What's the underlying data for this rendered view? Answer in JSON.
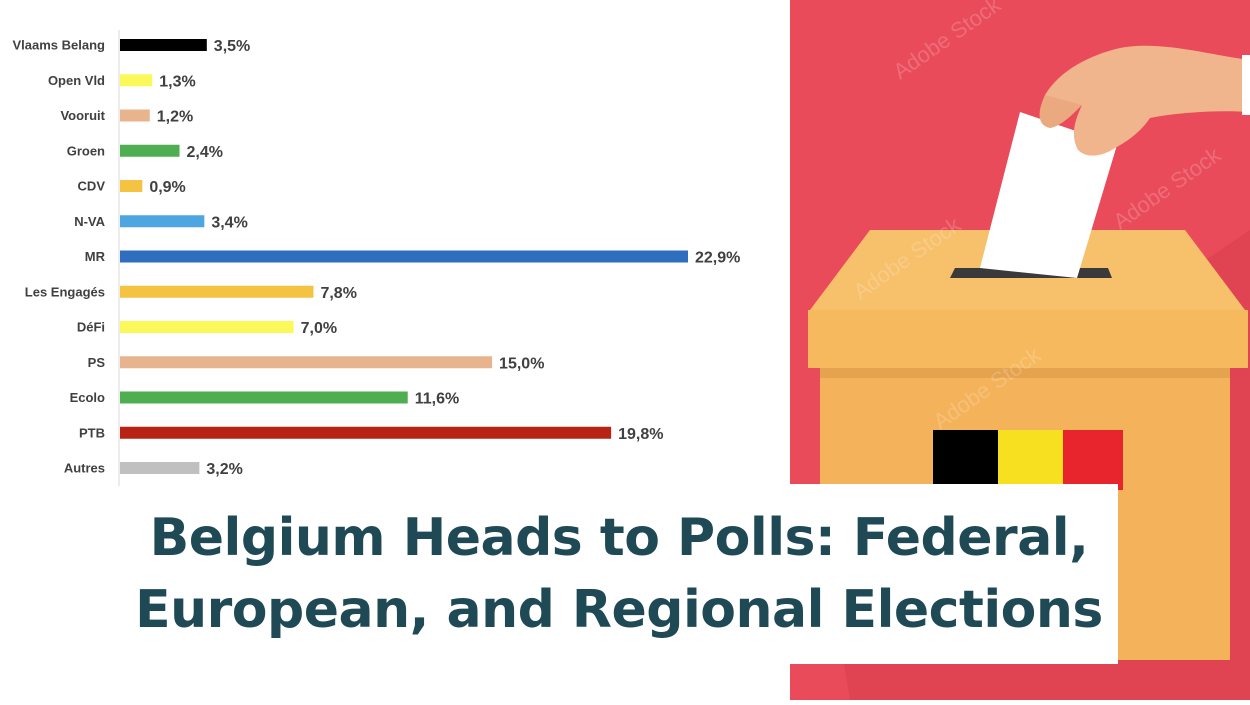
{
  "chart_data": {
    "type": "bar",
    "orientation": "horizontal",
    "categories": [
      "Vlaams Belang",
      "Open Vld",
      "Vooruit",
      "Groen",
      "CDV",
      "N-VA",
      "MR",
      "Les Engagés",
      "DéFi",
      "PS",
      "Ecolo",
      "PTB",
      "Autres"
    ],
    "values": [
      3.5,
      1.3,
      1.2,
      2.4,
      0.9,
      3.4,
      22.9,
      7.8,
      7.0,
      15.0,
      11.6,
      19.8,
      3.2
    ],
    "value_labels": [
      "3,5%",
      "1,3%",
      "1,2%",
      "2,4%",
      "0,9%",
      "3,4%",
      "22,9%",
      "7,8%",
      "7,0%",
      "15,0%",
      "11,6%",
      "19,8%",
      "3,2%"
    ],
    "colors": [
      "#000000",
      "#fbf95a",
      "#e8b48e",
      "#4fae52",
      "#f5c342",
      "#4ea6e0",
      "#2f6dbf",
      "#f5c342",
      "#fbf95a",
      "#e8b48e",
      "#4fae52",
      "#b82316",
      "#c0c0c0"
    ],
    "xlim": [
      0,
      25
    ],
    "grid": false,
    "legend": "none"
  },
  "headline": {
    "line1": "Belgium Heads to Polls: Federal,",
    "line2": "European, and Regional Elections"
  },
  "illustration": {
    "background_color": "#e94b5a",
    "box_color": "#f7b95e",
    "flag_colors": [
      "#000000",
      "#f6e01f",
      "#e8242c"
    ],
    "watermark": "Adobe Stock"
  }
}
